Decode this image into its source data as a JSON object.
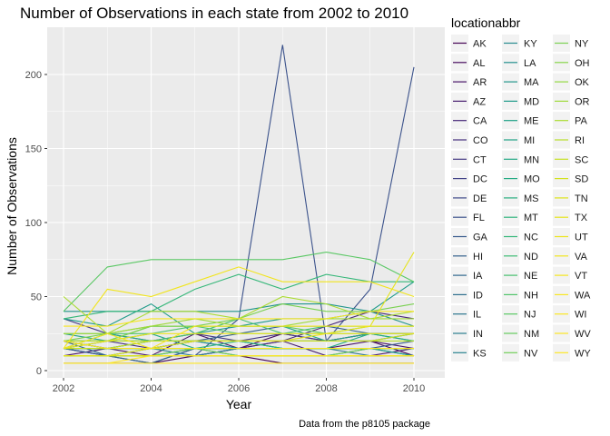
{
  "chart_data": {
    "type": "line",
    "title": "Number of Observations in each state from 2002 to 2010",
    "xlabel": "Year",
    "ylabel": "Number of Observations",
    "caption": "Data from the p8105 package",
    "legend_title": "locationabbr",
    "legend_placement": "right",
    "grid": true,
    "panel_background": "#EBEBEB",
    "xlim": [
      2002,
      2010
    ],
    "ylim": [
      0,
      225
    ],
    "x_ticks": [
      2002,
      2004,
      2006,
      2008,
      2010
    ],
    "y_ticks": [
      0,
      50,
      100,
      150,
      200
    ],
    "x": [
      2002,
      2003,
      2004,
      2005,
      2006,
      2007,
      2008,
      2009,
      2010
    ],
    "series": [
      {
        "name": "AK",
        "color": "#440154",
        "values": [
          5,
          null,
          10,
          10,
          10,
          5,
          5,
          5,
          5
        ]
      },
      {
        "name": "AL",
        "color": "#460B5E",
        "values": [
          5,
          5,
          5,
          10,
          15,
          25,
          20,
          20,
          10
        ]
      },
      {
        "name": "AR",
        "color": "#481467",
        "values": [
          10,
          15,
          10,
          25,
          15,
          15,
          15,
          20,
          15
        ]
      },
      {
        "name": "AZ",
        "color": "#481D6F",
        "values": [
          10,
          10,
          5,
          15,
          15,
          20,
          10,
          10,
          15
        ]
      },
      {
        "name": "CA",
        "color": "#472777",
        "values": [
          10,
          10,
          10,
          15,
          15,
          20,
          30,
          40,
          35
        ]
      },
      {
        "name": "CO",
        "color": "#46307E",
        "values": [
          20,
          20,
          15,
          20,
          20,
          20,
          20,
          25,
          25
        ]
      },
      {
        "name": "CT",
        "color": "#443983",
        "values": [
          35,
          25,
          20,
          25,
          20,
          25,
          20,
          25,
          25
        ]
      },
      {
        "name": "DC",
        "color": "#414287",
        "values": [
          10,
          10,
          10,
          10,
          15,
          15,
          15,
          15,
          15
        ]
      },
      {
        "name": "DE",
        "color": "#3E4A89",
        "values": [
          15,
          10,
          10,
          10,
          10,
          10,
          10,
          10,
          10
        ]
      },
      {
        "name": "FL",
        "color": "#3B528B",
        "values": [
          15,
          10,
          10,
          10,
          35,
          220,
          20,
          55,
          205
        ]
      },
      {
        "name": "GA",
        "color": "#375A8C",
        "values": [
          15,
          10,
          15,
          15,
          15,
          15,
          15,
          15,
          20
        ]
      },
      {
        "name": "HI",
        "color": "#34618D",
        "values": [
          15,
          20,
          20,
          20,
          25,
          30,
          30,
          25,
          25
        ]
      },
      {
        "name": "IA",
        "color": "#31688E",
        "values": [
          20,
          10,
          5,
          15,
          10,
          10,
          10,
          15,
          10
        ]
      },
      {
        "name": "ID",
        "color": "#2E6F8E",
        "values": [
          20,
          15,
          15,
          20,
          20,
          20,
          20,
          20,
          25
        ]
      },
      {
        "name": "IL",
        "color": "#2C768E",
        "values": [
          15,
          15,
          15,
          20,
          20,
          15,
          15,
          10,
          10
        ]
      },
      {
        "name": "IN",
        "color": "#2A7D8E",
        "values": [
          15,
          15,
          15,
          10,
          15,
          15,
          15,
          15,
          15
        ]
      },
      {
        "name": "KS",
        "color": "#27838E",
        "values": [
          20,
          15,
          20,
          20,
          15,
          15,
          15,
          15,
          15
        ]
      },
      {
        "name": "KY",
        "color": "#25898E",
        "values": [
          15,
          15,
          15,
          15,
          15,
          15,
          15,
          15,
          15
        ]
      },
      {
        "name": "LA",
        "color": "#228F8D",
        "values": [
          15,
          15,
          20,
          20,
          15,
          15,
          15,
          15,
          15
        ]
      },
      {
        "name": "MA",
        "color": "#21958B",
        "values": [
          40,
          40,
          40,
          40,
          40,
          45,
          45,
          40,
          30
        ]
      },
      {
        "name": "MD",
        "color": "#1F9B8A",
        "values": [
          35,
          30,
          45,
          25,
          30,
          35,
          35,
          40,
          60
        ]
      },
      {
        "name": "ME",
        "color": "#1FA188",
        "values": [
          10,
          10,
          15,
          15,
          15,
          15,
          15,
          15,
          10
        ]
      },
      {
        "name": "MI",
        "color": "#20A386",
        "values": [
          25,
          20,
          30,
          30,
          30,
          30,
          20,
          25,
          20
        ]
      },
      {
        "name": "MN",
        "color": "#22A884",
        "values": [
          20,
          20,
          25,
          15,
          15,
          15,
          15,
          15,
          15
        ]
      },
      {
        "name": "MO",
        "color": "#24AA83",
        "values": [
          15,
          25,
          20,
          20,
          20,
          15,
          15,
          25,
          20
        ]
      },
      {
        "name": "MS",
        "color": "#29AF7F",
        "values": [
          15,
          15,
          15,
          15,
          15,
          15,
          15,
          15,
          15
        ]
      },
      {
        "name": "MT",
        "color": "#2EB37C",
        "values": [
          15,
          15,
          15,
          15,
          20,
          15,
          15,
          15,
          15
        ]
      },
      {
        "name": "NC",
        "color": "#35B779",
        "values": [
          35,
          40,
          40,
          55,
          65,
          55,
          65,
          60,
          60
        ]
      },
      {
        "name": "ND",
        "color": "#3DBC74",
        "values": [
          10,
          10,
          10,
          15,
          15,
          15,
          15,
          15,
          15
        ]
      },
      {
        "name": "NE",
        "color": "#46C06F",
        "values": [
          15,
          20,
          20,
          25,
          35,
          25,
          30,
          30,
          30
        ]
      },
      {
        "name": "NH",
        "color": "#50C46A",
        "values": [
          25,
          25,
          25,
          30,
          25,
          25,
          25,
          25,
          25
        ]
      },
      {
        "name": "NJ",
        "color": "#5AC864",
        "values": [
          40,
          70,
          75,
          75,
          75,
          75,
          80,
          75,
          60
        ]
      },
      {
        "name": "NM",
        "color": "#65CB5E",
        "values": [
          20,
          20,
          30,
          30,
          30,
          30,
          25,
          30,
          30
        ]
      },
      {
        "name": "NV",
        "color": "#70CF57",
        "values": [
          10,
          10,
          10,
          15,
          10,
          10,
          10,
          15,
          15
        ]
      },
      {
        "name": "NY",
        "color": "#7AD151",
        "values": [
          20,
          25,
          30,
          30,
          35,
          45,
          40,
          40,
          45
        ]
      },
      {
        "name": "OH",
        "color": "#86D549",
        "values": [
          20,
          20,
          30,
          30,
          30,
          30,
          30,
          30,
          30
        ]
      },
      {
        "name": "OK",
        "color": "#92D841",
        "values": [
          15,
          15,
          15,
          15,
          15,
          15,
          15,
          15,
          15
        ]
      },
      {
        "name": "OR",
        "color": "#9FDA3A",
        "values": [
          25,
          25,
          30,
          35,
          30,
          30,
          35,
          35,
          35
        ]
      },
      {
        "name": "PA",
        "color": "#ABDC32",
        "values": [
          50,
          25,
          40,
          40,
          35,
          50,
          45,
          35,
          40
        ]
      },
      {
        "name": "RI",
        "color": "#B8DE29",
        "values": [
          20,
          20,
          20,
          20,
          20,
          20,
          20,
          20,
          20
        ]
      },
      {
        "name": "SC",
        "color": "#C5E021",
        "values": [
          15,
          15,
          20,
          20,
          20,
          20,
          20,
          20,
          25
        ]
      },
      {
        "name": "SD",
        "color": "#D2E21B",
        "values": [
          10,
          10,
          10,
          10,
          10,
          10,
          10,
          10,
          10
        ]
      },
      {
        "name": "TN",
        "color": "#DDE318",
        "values": [
          10,
          10,
          10,
          10,
          10,
          10,
          10,
          10,
          10
        ]
      },
      {
        "name": "TX",
        "color": "#E5E419",
        "values": [
          10,
          10,
          15,
          20,
          20,
          20,
          25,
          30,
          80
        ]
      },
      {
        "name": "UT",
        "color": "#ECE51B",
        "values": [
          15,
          20,
          25,
          25,
          25,
          25,
          25,
          25,
          25
        ]
      },
      {
        "name": "VA",
        "color": "#F1E51D",
        "values": [
          15,
          55,
          50,
          60,
          70,
          60,
          60,
          60,
          50
        ]
      },
      {
        "name": "VT",
        "color": "#F5E61F",
        "values": [
          15,
          25,
          15,
          30,
          30,
          30,
          30,
          30,
          30
        ]
      },
      {
        "name": "WA",
        "color": "#F8E621",
        "values": [
          30,
          30,
          35,
          35,
          35,
          35,
          35,
          40,
          40
        ]
      },
      {
        "name": "WI",
        "color": "#FAE622",
        "values": [
          20,
          15,
          15,
          15,
          15,
          15,
          15,
          15,
          15
        ]
      },
      {
        "name": "WV",
        "color": "#FCE624",
        "values": [
          5,
          5,
          5,
          5,
          5,
          5,
          5,
          5,
          5
        ]
      },
      {
        "name": "WY",
        "color": "#FDE725",
        "values": [
          5,
          5,
          10,
          10,
          10,
          10,
          10,
          10,
          10
        ]
      }
    ]
  }
}
